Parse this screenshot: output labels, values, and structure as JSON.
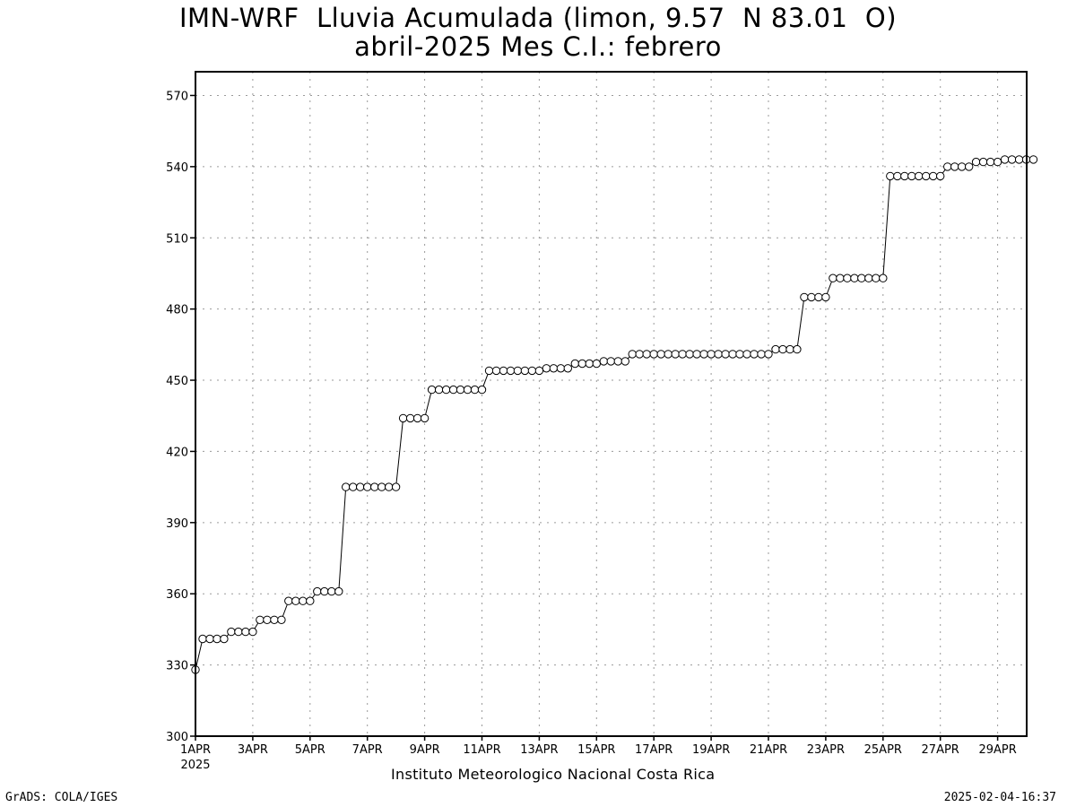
{
  "chart_data": {
    "type": "line",
    "title": "IMN-WRF  Lluvia Acumulada (limon, 9.57  N 83.01  O)",
    "subtitle": "abril-2025 Mes C.I.: febrero",
    "xlabel": "",
    "ylabel": "",
    "ylim": [
      300,
      580
    ],
    "yticks": [
      300,
      330,
      360,
      390,
      420,
      450,
      480,
      510,
      540,
      570
    ],
    "xlim": [
      "2025-04-01T00",
      "2025-04-30T12"
    ],
    "xtick_labels": [
      "1APR",
      "3APR",
      "5APR",
      "7APR",
      "9APR",
      "11APR",
      "13APR",
      "15APR",
      "17APR",
      "19APR",
      "21APR",
      "23APR",
      "25APR",
      "27APR",
      "29APR"
    ],
    "year_label": "2025",
    "grid": true,
    "marker": "open-circle",
    "time_step_hours": 6,
    "series": [
      {
        "values": [
          328,
          341,
          341,
          341,
          341,
          344,
          344,
          344,
          344,
          349,
          349,
          349,
          349,
          357,
          357,
          357,
          357,
          361,
          361,
          361,
          361,
          405,
          405,
          405,
          405,
          405,
          405,
          405,
          405,
          434,
          434,
          434,
          434,
          446,
          446,
          446,
          446,
          446,
          446,
          446,
          446,
          454,
          454,
          454,
          454,
          454,
          454,
          454,
          454,
          455,
          455,
          455,
          455,
          457,
          457,
          457,
          457,
          458,
          458,
          458,
          458,
          461,
          461,
          461,
          461,
          461,
          461,
          461,
          461,
          461,
          461,
          461,
          461,
          461,
          461,
          461,
          461,
          461,
          461,
          461,
          461,
          463,
          463,
          463,
          463,
          485,
          485,
          485,
          485,
          493,
          493,
          493,
          493,
          493,
          493,
          493,
          493,
          536,
          536,
          536,
          536,
          536,
          536,
          536,
          536,
          540,
          540,
          540,
          540,
          542,
          542,
          542,
          542,
          543,
          543,
          543,
          543,
          543
        ]
      }
    ]
  },
  "footer": {
    "institution": "Instituto Meteorologico Nacional Costa Rica",
    "credit": "GrADS: COLA/IGES",
    "timestamp": "2025-02-04-16:37"
  }
}
